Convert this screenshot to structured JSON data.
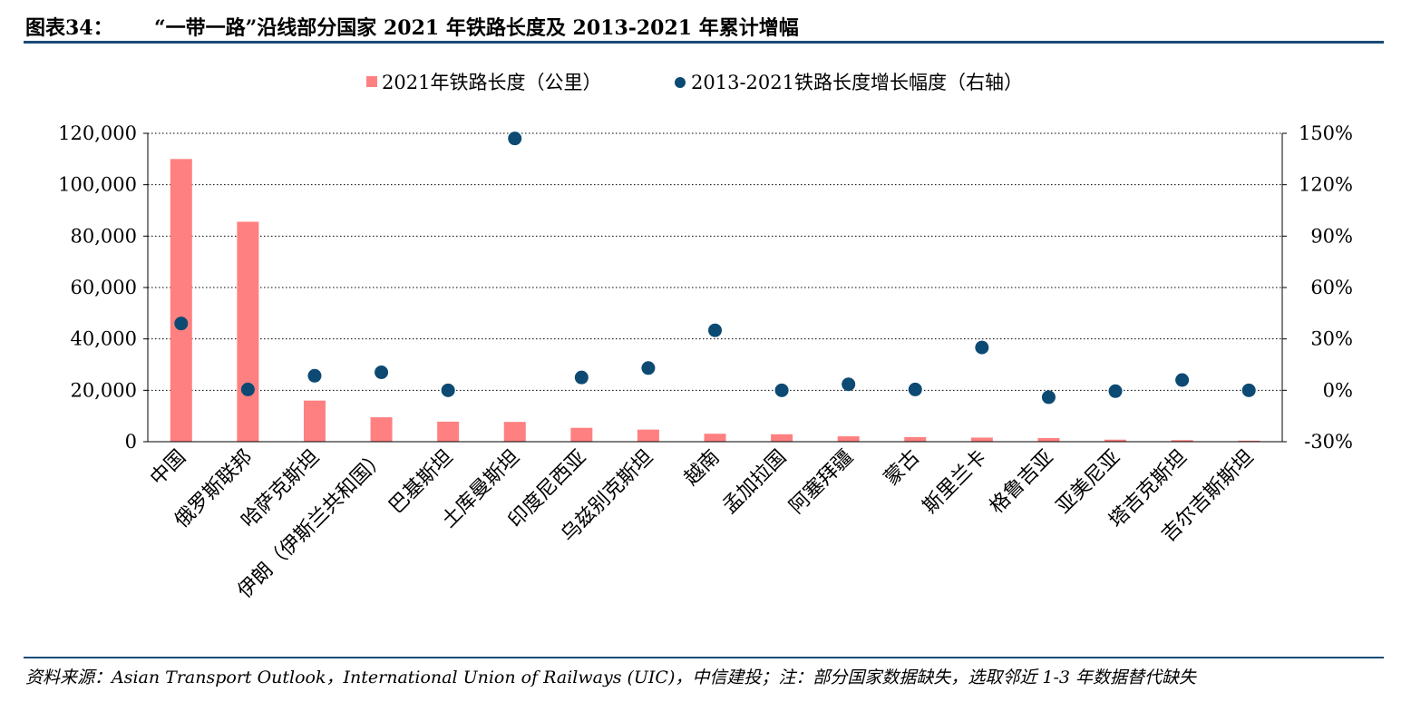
{
  "header": {
    "figure_label": "图表34：",
    "title": "“一带一路”沿线部分国家 2021 年铁路长度及 2013-2021 年累计增幅"
  },
  "footer": {
    "source": "资料来源：Asian Transport Outlook，International Union of Railways (UIC)，中信建投；注：部分国家数据缺失，选取邻近 1-3 年数据替代缺失"
  },
  "colors": {
    "bar": "#ff8080",
    "dot": "#0c4a73",
    "grid": "#000000",
    "rule": "#1b4b78"
  },
  "chart_data": {
    "type": "bar+scatter",
    "legend_position": "top-center",
    "grid": "horizontal-dotted",
    "categories": [
      "中国",
      "俄罗斯联邦",
      "哈萨克斯坦",
      "伊朗（伊斯兰共和国）",
      "巴基斯坦",
      "土库曼斯坦",
      "印度尼西亚",
      "乌兹别克斯坦",
      "越南",
      "孟加拉国",
      "阿塞拜疆",
      "蒙古",
      "斯里兰卡",
      "格鲁吉亚",
      "亚美尼亚",
      "塔吉克斯坦",
      "吉尔吉斯斯坦"
    ],
    "series": [
      {
        "name": "2021年铁路长度（公里）",
        "kind": "bar",
        "axis": "left",
        "values": [
          110000,
          85600,
          16000,
          9500,
          7800,
          7700,
          5400,
          4700,
          3100,
          2900,
          2100,
          1800,
          1600,
          1400,
          800,
          600,
          400
        ]
      },
      {
        "name": "2013-2021铁路长度增长幅度（右轴）",
        "kind": "scatter",
        "axis": "right",
        "values": [
          39,
          0.5,
          8.5,
          10.5,
          0,
          147,
          7.5,
          13,
          35,
          0,
          3.5,
          0.5,
          25,
          -4,
          -0.5,
          6,
          0
        ]
      }
    ],
    "y_left": {
      "min": 0,
      "max": 120000,
      "ticks": [
        0,
        20000,
        40000,
        60000,
        80000,
        100000,
        120000
      ],
      "tick_labels": [
        "0",
        "20,000",
        "40,000",
        "60,000",
        "80,000",
        "100,000",
        "120,000"
      ]
    },
    "y_right": {
      "min": -30,
      "max": 150,
      "ticks": [
        -30,
        0,
        30,
        60,
        90,
        120,
        150
      ],
      "tick_labels": [
        "-30%",
        "0%",
        "30%",
        "60%",
        "90%",
        "120%",
        "150%"
      ]
    }
  }
}
